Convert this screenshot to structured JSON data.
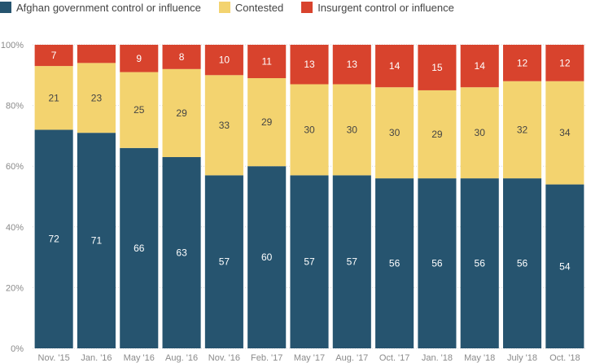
{
  "chart_data": {
    "type": "bar",
    "stacked": true,
    "title": "",
    "xlabel": "",
    "ylabel": "",
    "ylim": [
      0,
      100
    ],
    "yticks": [
      "0%",
      "20%",
      "40%",
      "60%",
      "80%",
      "100%"
    ],
    "categories": [
      "Nov. '15",
      "Jan. '16",
      "May '16",
      "Aug. '16",
      "Nov. '16",
      "Feb. '17",
      "May '17",
      "Aug. '17",
      "Oct. '17",
      "Jan. '18",
      "May '18",
      "July '18",
      "Oct. '18"
    ],
    "series": [
      {
        "name": "Afghan government control or influence",
        "color": "#26546f",
        "label_color": "#ffffff",
        "values": [
          72,
          71,
          66,
          63,
          57,
          60,
          57,
          57,
          56,
          56,
          56,
          56,
          54
        ]
      },
      {
        "name": "Contested",
        "color": "#f3d36f",
        "label_color": "#444444",
        "values": [
          21,
          23,
          25,
          29,
          33,
          29,
          30,
          30,
          30,
          29,
          30,
          32,
          34
        ]
      },
      {
        "name": "Insurgent control or influence",
        "color": "#d8432d",
        "label_color": "#ffffff",
        "values": [
          7,
          6,
          9,
          8,
          10,
          11,
          13,
          13,
          14,
          15,
          14,
          12,
          12
        ]
      }
    ],
    "data_labels": [
      [
        "72",
        "71",
        "66",
        "63",
        "57",
        "60",
        "57",
        "57",
        "56",
        "56",
        "56",
        "56",
        "54"
      ],
      [
        "21",
        "23",
        "25",
        "29",
        "33",
        "29",
        "30",
        "30",
        "30",
        "29",
        "30",
        "32",
        "34"
      ],
      [
        "7",
        "",
        "9",
        "8",
        "10",
        "11",
        "13",
        "13",
        "14",
        "15",
        "14",
        "12",
        "12"
      ]
    ],
    "legend_position": "top-left",
    "grid": true
  }
}
